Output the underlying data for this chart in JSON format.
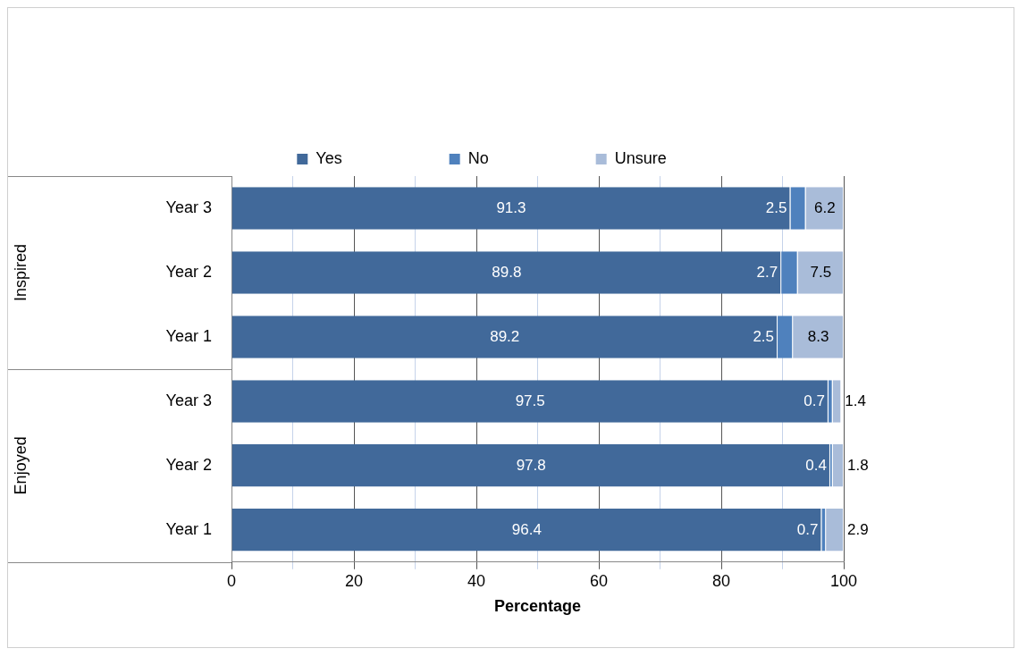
{
  "chart_data": {
    "type": "bar",
    "orientation": "horizontal",
    "stacked": true,
    "categories": [
      "Year 3",
      "Year 2",
      "Year 1",
      "Year 3",
      "Year 2",
      "Year 1"
    ],
    "series": [
      {
        "name": "Yes",
        "color": "#41699a",
        "values": [
          91.3,
          89.8,
          89.2,
          97.5,
          97.8,
          96.4
        ]
      },
      {
        "name": "No",
        "color": "#4f81bd",
        "values": [
          2.5,
          2.7,
          2.5,
          0.7,
          0.4,
          0.7
        ]
      },
      {
        "name": "Unsure",
        "color": "#a9bcd9",
        "values": [
          6.2,
          7.5,
          8.3,
          1.4,
          1.8,
          2.9
        ]
      }
    ],
    "xlabel": "Percentage",
    "xlim": [
      0,
      100
    ],
    "xticks": [
      0,
      {
        "value": 10,
        "label": null
      },
      20,
      {
        "value": 30,
        "label": null
      },
      40,
      {
        "value": 50,
        "label": null
      },
      60,
      {
        "value": 70,
        "label": null
      },
      80,
      {
        "value": 90,
        "label": null
      },
      100
    ],
    "annotations": [
      "Inspired",
      "Enjoyed"
    ],
    "grid": "x",
    "legend": "top",
    "data_labels": true
  }
}
